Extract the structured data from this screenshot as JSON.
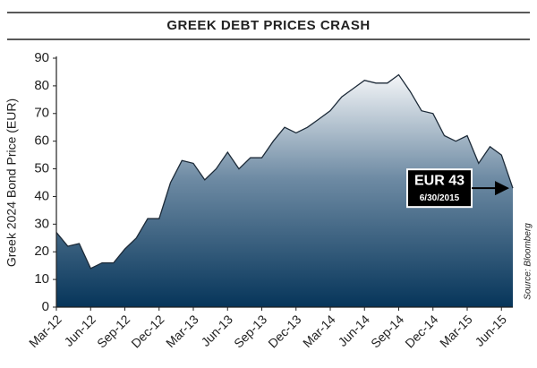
{
  "chart_data": {
    "type": "area",
    "title": "GREEK DEBT PRICES CRASH",
    "y_label": "Greek 2024 Bond Price (EUR)",
    "source": "Source: Bloomberg",
    "annotation": {
      "label": "EUR 43",
      "date": "6/30/2015"
    },
    "categories": [
      "Mar-12",
      null,
      null,
      "Jun-12",
      null,
      null,
      "Sep-12",
      null,
      null,
      "Dec-12",
      null,
      null,
      "Mar-13",
      null,
      null,
      "Jun-13",
      null,
      null,
      "Sep-13",
      null,
      null,
      "Dec-13",
      null,
      null,
      "Mar-14",
      null,
      null,
      "Jun-14",
      null,
      null,
      "Sep-14",
      null,
      null,
      "Dec-14",
      null,
      null,
      "Mar-15",
      null,
      null,
      "Jun-15",
      null
    ],
    "values": [
      27,
      22,
      23,
      14,
      16,
      16,
      21,
      25,
      32,
      32,
      45,
      53,
      52,
      46,
      50,
      56,
      50,
      54,
      54,
      60,
      65,
      63,
      65,
      68,
      71,
      76,
      79,
      82,
      81,
      81,
      84,
      78,
      71,
      70,
      62,
      60,
      62,
      52,
      58,
      55,
      43
    ],
    "color": "#0b3a5c",
    "ylim": [
      0,
      90
    ],
    "yticks": [
      0,
      10,
      20,
      30,
      40,
      50,
      60,
      70,
      80,
      90
    ]
  }
}
